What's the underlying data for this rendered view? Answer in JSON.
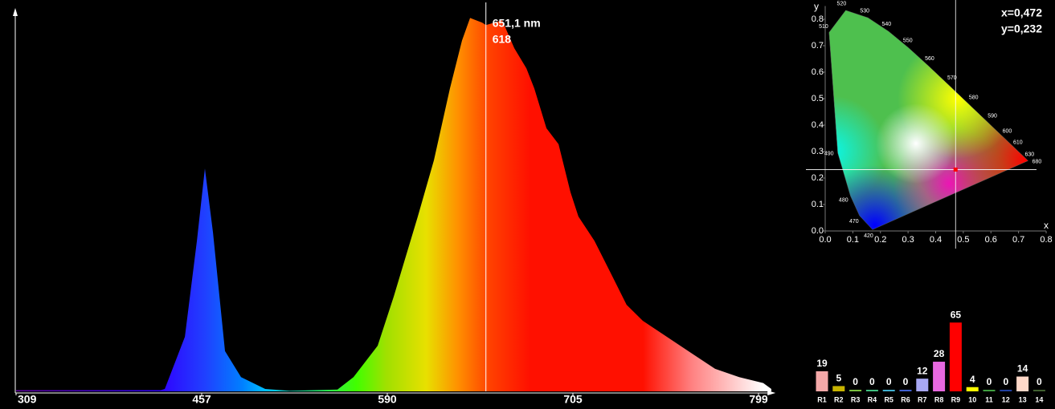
{
  "chart_data": [
    {
      "type": "area",
      "x": [
        309,
        360.3,
        424.4,
        427.6,
        443.6,
        453.2,
        459.3,
        465.1,
        473.7,
        485.2,
        502.5,
        519.8,
        554.3,
        565.8,
        583.1,
        594,
        608.9,
        618.9,
        628.8,
        636.3,
        641.3,
        648.8,
        651.1,
        661.2,
        668.7,
        676.2,
        681.1,
        688.6,
        696.1,
        703.5,
        707.8,
        715.9,
        724.1,
        732.2,
        740.4,
        752.6,
        764.8,
        777,
        789.2,
        801.4,
        805.5
      ],
      "values": [
        2,
        2,
        2,
        4,
        92,
        254,
        376,
        268,
        68,
        24,
        4,
        1,
        3,
        24,
        77,
        160,
        295,
        390,
        511,
        592,
        630,
        622,
        618,
        626,
        579,
        545,
        511,
        444,
        417,
        336,
        295,
        254,
        200,
        146,
        119,
        92,
        65,
        38,
        24,
        14,
        4
      ],
      "xlim": [
        309,
        806
      ],
      "ylim": [
        0,
        640
      ],
      "xticks": [
        309,
        457,
        590,
        705,
        799
      ],
      "cursor": {
        "x": 651.1,
        "label": "651,1 nm",
        "value": 618
      }
    },
    {
      "type": "cie",
      "xlabel": "x",
      "ylabel": "y",
      "xlim": [
        0,
        0.8
      ],
      "ylim": [
        0,
        0.85
      ],
      "xticks": [
        {
          "value": 0,
          "label": "0.0"
        },
        0.1,
        0.2,
        0.3,
        0.4,
        0.5,
        0.6,
        0.7,
        0.8
      ],
      "yticks": [
        {
          "value": 0,
          "label": "0.0"
        },
        0.1,
        0.2,
        0.3,
        0.4,
        0.5,
        0.6,
        0.7,
        0.8
      ],
      "locus": {
        "wavelengths": [
          420,
          470,
          480,
          490,
          510,
          520,
          530,
          540,
          550,
          560,
          570,
          580,
          590,
          600,
          610,
          630,
          680
        ],
        "x": [
          0.1714,
          0.1241,
          0.0913,
          0.0454,
          0.0139,
          0.0743,
          0.1547,
          0.2296,
          0.3016,
          0.3731,
          0.4441,
          0.5125,
          0.5752,
          0.627,
          0.6658,
          0.7079,
          0.7347
        ],
        "y": [
          0.0051,
          0.0578,
          0.1327,
          0.295,
          0.7502,
          0.8338,
          0.8059,
          0.7543,
          0.6923,
          0.6245,
          0.5547,
          0.4866,
          0.4242,
          0.3725,
          0.334,
          0.292,
          0.2653
        ]
      },
      "point": {
        "x": 0.472,
        "y": 0.232,
        "x_label": "x=0,472",
        "y_label": "y=0,232"
      }
    },
    {
      "type": "bar",
      "categories": [
        "R1",
        "R2",
        "R3",
        "R4",
        "R5",
        "R6",
        "R7",
        "R8",
        "R9",
        "10",
        "11",
        "12",
        "13",
        "14"
      ],
      "values": [
        19,
        5,
        0,
        0,
        0,
        0,
        12,
        28,
        65,
        4,
        0,
        0,
        14,
        0
      ],
      "colors": [
        "#f4a8a8",
        "#c8b400",
        "#7ac040",
        "#40c080",
        "#40b0d0",
        "#4060d0",
        "#a8a8f4",
        "#e868e0",
        "#ff0000",
        "#ffff00",
        "#40a040",
        "#2040a0",
        "#ffd8c8",
        "#406030"
      ],
      "ylim": [
        0,
        100
      ]
    }
  ]
}
